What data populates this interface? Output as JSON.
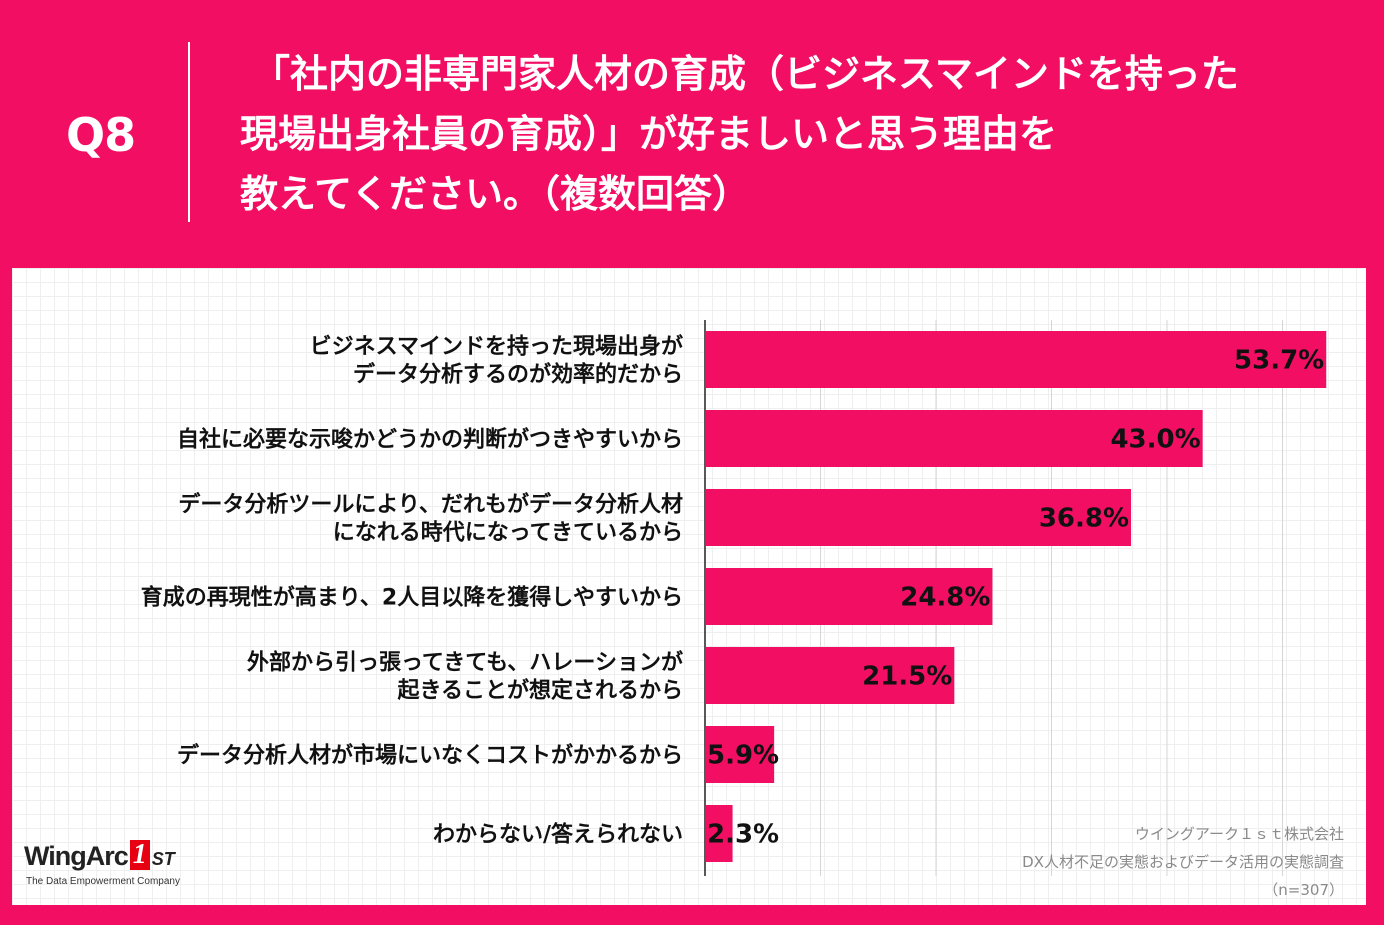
{
  "header": {
    "question_number": "Q8",
    "title_lines": [
      "「社内の非専門家人材の育成（ビジネスマインドを持った",
      "現場出身社員の育成）」が好ましいと思う理由を",
      "教えてください。（複数回答）"
    ]
  },
  "chart_data": {
    "type": "bar",
    "orientation": "horizontal",
    "categories": [
      [
        "ビジネスマインドを持った現場出身が",
        "データ分析するのが効率的だから"
      ],
      [
        "自社に必要な示唆かどうかの判断がつきやすいから"
      ],
      [
        "データ分析ツールにより、だれもがデータ分析人材",
        "になれる時代になってきているから"
      ],
      [
        "育成の再現性が高まり、2人目以降を獲得しやすいから"
      ],
      [
        "外部から引っ張ってきても、ハレーションが",
        "起きることが想定されるから"
      ],
      [
        "データ分析人材が市場にいなくコストがかかるから"
      ],
      [
        "わからない/答えられない"
      ]
    ],
    "values": [
      53.7,
      43.0,
      36.8,
      24.8,
      21.5,
      5.9,
      2.3
    ],
    "value_labels": [
      "53.7%",
      "43.0%",
      "36.8%",
      "24.8%",
      "21.5%",
      "5.9%",
      "2.3%"
    ],
    "xlim": [
      0,
      60
    ],
    "grid": true,
    "bar_color": "#f20f63"
  },
  "logo": {
    "name_prefix": "WingArc",
    "name_mark": "1",
    "name_suffix": "ST",
    "tagline": "The Data Empowerment Company"
  },
  "source": {
    "company": "ウイングアーク１ｓｔ株式会社",
    "survey": "DX人材不足の実態およびデータ活用の実態調査",
    "sample": "（n=307）"
  }
}
